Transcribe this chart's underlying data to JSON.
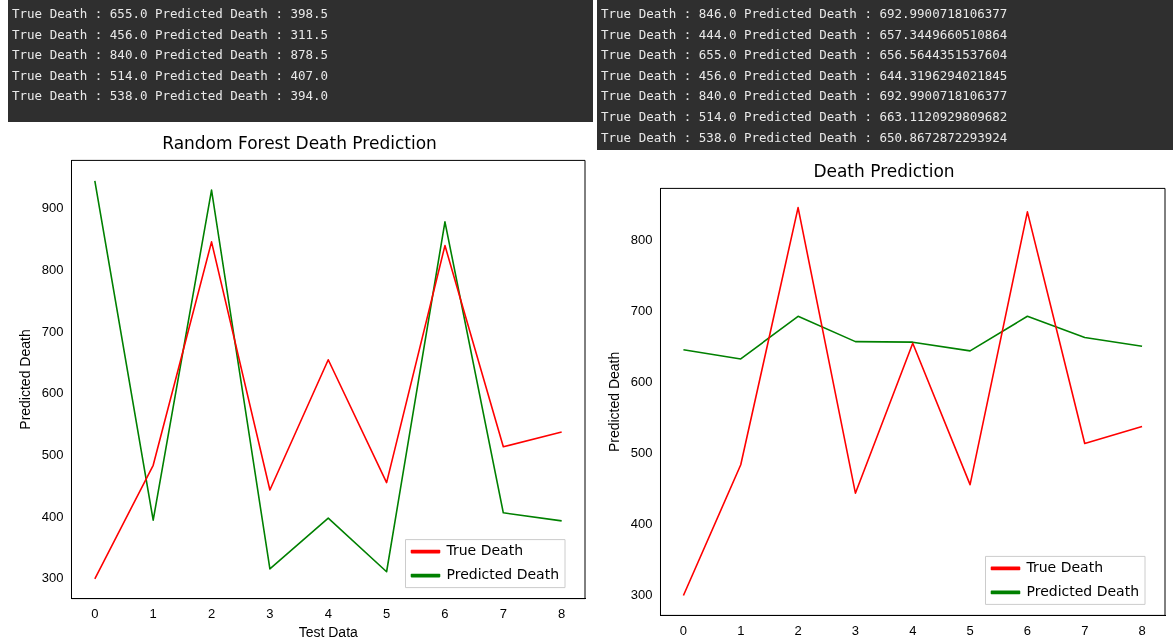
{
  "chart_data": [
    {
      "type": "line",
      "title": "Random Forest Death Prediction",
      "xlabel": "Test Data",
      "ylabel": "Predicted Death",
      "x": [
        0,
        1,
        2,
        3,
        4,
        5,
        6,
        7,
        8
      ],
      "series": [
        {
          "name": "True Death",
          "color": "#ff0000",
          "values": [
            300,
            484,
            846,
            444,
            655,
            456,
            840,
            514,
            538
          ]
        },
        {
          "name": "Predicted Death",
          "color": "#008000",
          "values": [
            945,
            395,
            930,
            316,
            398.5,
            311.5,
            878.5,
            407,
            394
          ]
        }
      ],
      "xlim": [
        -0.4,
        8.4
      ],
      "xticks": [
        0,
        1,
        2,
        3,
        4,
        5,
        6,
        7,
        8
      ],
      "ylim": [
        268,
        978
      ],
      "yticks": [
        300,
        400,
        500,
        600,
        700,
        800,
        900
      ],
      "legend": "bottom right",
      "grid": false,
      "marker": "none",
      "line_style": "solid",
      "annotations": [
        "True Death : 655.0 Predicted Death : 398.5",
        "True Death : 456.0 Predicted Death : 311.5",
        "True Death : 840.0 Predicted Death : 878.5",
        "True Death : 514.0 Predicted Death : 407.0",
        "True Death : 538.0 Predicted Death : 394.0"
      ]
    },
    {
      "type": "line",
      "title": "Death Prediction",
      "ylabel": "Predicted Death",
      "x": [
        0,
        1,
        2,
        3,
        4,
        5,
        6,
        7,
        8
      ],
      "series": [
        {
          "name": "True Death",
          "color": "#ff0000",
          "values": [
            300,
            484,
            846,
            444,
            655,
            456,
            840,
            514,
            538
          ]
        },
        {
          "name": "Predicted Death",
          "color": "#008000",
          "values": [
            646,
            633,
            692.9900718106377,
            657.3449660510864,
            656.5644351537604,
            644.3196294021845,
            692.9900718106377,
            663.1120929809682,
            650.8672872293924
          ]
        }
      ],
      "xlim": [
        -0.4,
        8.4
      ],
      "xticks": [
        0,
        1,
        2,
        3,
        4,
        5,
        6,
        7,
        8
      ],
      "ylim": [
        272,
        873
      ],
      "yticks": [
        300,
        400,
        500,
        600,
        700,
        800
      ],
      "legend": "bottom right",
      "grid": false,
      "marker": "none",
      "line_style": "solid",
      "annotations": [
        "True Death : 846.0 Predicted Death : 692.9900718106377",
        "True Death : 444.0 Predicted Death : 657.3449660510864",
        "True Death : 655.0 Predicted Death : 656.5644351537604",
        "True Death : 456.0 Predicted Death : 644.3196294021845",
        "True Death : 840.0 Predicted Death : 692.9900718106377",
        "True Death : 514.0 Predicted Death : 663.1120929809682",
        "True Death : 538.0 Predicted Death : 650.8672872293924"
      ]
    }
  ]
}
